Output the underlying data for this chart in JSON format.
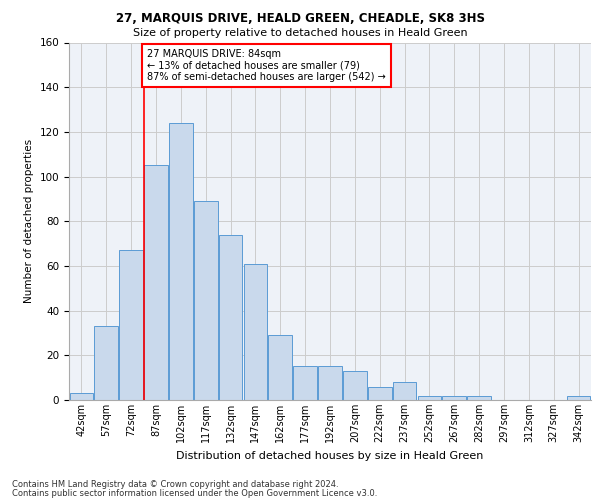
{
  "title1": "27, MARQUIS DRIVE, HEALD GREEN, CHEADLE, SK8 3HS",
  "title2": "Size of property relative to detached houses in Heald Green",
  "xlabel": "Distribution of detached houses by size in Heald Green",
  "ylabel": "Number of detached properties",
  "categories": [
    "42sqm",
    "57sqm",
    "72sqm",
    "87sqm",
    "102sqm",
    "117sqm",
    "132sqm",
    "147sqm",
    "162sqm",
    "177sqm",
    "192sqm",
    "207sqm",
    "222sqm",
    "237sqm",
    "252sqm",
    "267sqm",
    "282sqm",
    "297sqm",
    "312sqm",
    "327sqm",
    "342sqm"
  ],
  "values": [
    3,
    33,
    67,
    105,
    124,
    89,
    74,
    61,
    29,
    15,
    15,
    13,
    6,
    8,
    2,
    2,
    2,
    0,
    0,
    0,
    2
  ],
  "bar_color": "#c9d9ec",
  "bar_edge_color": "#5b9bd5",
  "annotation_line1": "27 MARQUIS DRIVE: 84sqm",
  "annotation_line2": "← 13% of detached houses are smaller (79)",
  "annotation_line3": "87% of semi-detached houses are larger (542) →",
  "annotation_box_color": "white",
  "annotation_box_edge": "red",
  "vline_x": 2.5,
  "vline_color": "red",
  "ylim": [
    0,
    160
  ],
  "yticks": [
    0,
    20,
    40,
    60,
    80,
    100,
    120,
    140,
    160
  ],
  "footer1": "Contains HM Land Registry data © Crown copyright and database right 2024.",
  "footer2": "Contains public sector information licensed under the Open Government Licence v3.0.",
  "grid_color": "#cccccc",
  "bg_color": "#eef2f8"
}
